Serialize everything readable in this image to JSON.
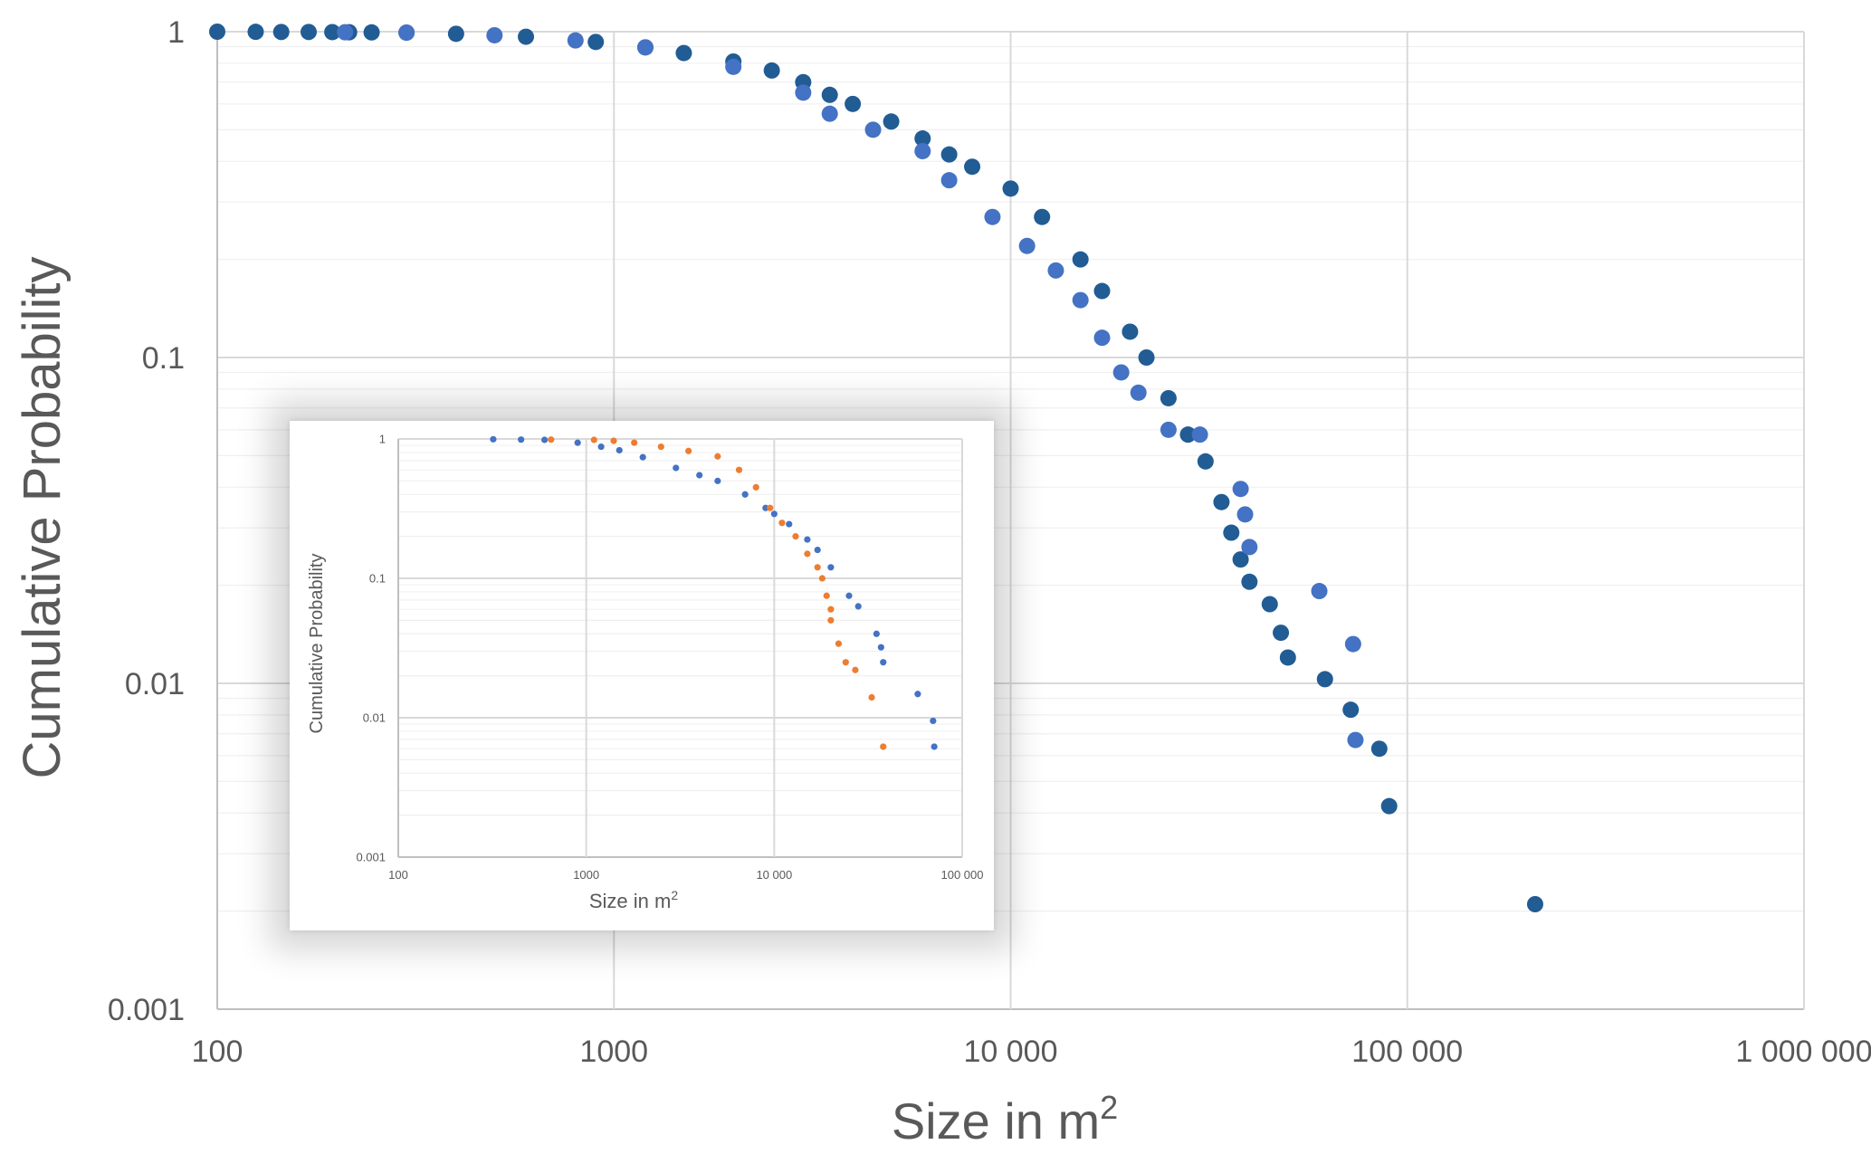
{
  "chart_data": [
    {
      "type": "scatter",
      "xlabel": "Size in m",
      "xlabel_sup": "2",
      "ylabel": "Cumulative Probability",
      "x_scale": "log",
      "y_scale": "log",
      "xlim": [
        100,
        1000000
      ],
      "ylim": [
        0.001,
        1
      ],
      "x_ticks": [
        "100",
        "1000",
        "10 000",
        "100 000",
        "1 000 000"
      ],
      "y_ticks": [
        "1",
        "0.1",
        "0.01",
        "0.001"
      ],
      "grid": true,
      "legend": "none",
      "series": [
        {
          "color": "#215c94",
          "points": [
            [
              100,
              1
            ],
            [
              125,
              0.999
            ],
            [
              145,
              0.998
            ],
            [
              170,
              0.998
            ],
            [
              195,
              0.997
            ],
            [
              215,
              0.996
            ],
            [
              245,
              0.995
            ],
            [
              300,
              0.993
            ],
            [
              400,
              0.985
            ],
            [
              600,
              0.965
            ],
            [
              900,
              0.93
            ],
            [
              1200,
              0.895
            ],
            [
              1500,
              0.86
            ],
            [
              2000,
              0.81
            ],
            [
              2500,
              0.76
            ],
            [
              3000,
              0.7
            ],
            [
              3500,
              0.64
            ],
            [
              4000,
              0.6
            ],
            [
              5000,
              0.53
            ],
            [
              6000,
              0.47
            ],
            [
              7000,
              0.42
            ],
            [
              8000,
              0.385
            ],
            [
              10000,
              0.33
            ],
            [
              12000,
              0.27
            ],
            [
              15000,
              0.2
            ],
            [
              17000,
              0.16
            ],
            [
              20000,
              0.12
            ],
            [
              22000,
              0.1
            ],
            [
              25000,
              0.075
            ],
            [
              28000,
              0.058
            ],
            [
              31000,
              0.048
            ],
            [
              34000,
              0.036
            ],
            [
              36000,
              0.029
            ],
            [
              38000,
              0.024
            ],
            [
              40000,
              0.0205
            ],
            [
              45000,
              0.0175
            ],
            [
              48000,
              0.0143
            ],
            [
              50000,
              0.012
            ],
            [
              62000,
              0.0103
            ],
            [
              72000,
              0.0083
            ],
            [
              85000,
              0.0063
            ],
            [
              90000,
              0.0042
            ],
            [
              210000,
              0.0021
            ]
          ]
        },
        {
          "color": "#4472c4",
          "points": [
            [
              210,
              0.996
            ],
            [
              300,
              0.994
            ],
            [
              500,
              0.975
            ],
            [
              800,
              0.94
            ],
            [
              1200,
              0.895
            ],
            [
              2000,
              0.78
            ],
            [
              3000,
              0.65
            ],
            [
              3500,
              0.56
            ],
            [
              4500,
              0.5
            ],
            [
              6000,
              0.43
            ],
            [
              7000,
              0.35
            ],
            [
              9000,
              0.27
            ],
            [
              11000,
              0.22
            ],
            [
              13000,
              0.185
            ],
            [
              15000,
              0.15
            ],
            [
              17000,
              0.115
            ],
            [
              19000,
              0.09
            ],
            [
              21000,
              0.078
            ],
            [
              25000,
              0.06
            ],
            [
              30000,
              0.058
            ],
            [
              38000,
              0.0395
            ],
            [
              39000,
              0.033
            ],
            [
              40000,
              0.0262
            ],
            [
              60000,
              0.0192
            ],
            [
              73000,
              0.0132
            ],
            [
              74000,
              0.0067
            ]
          ]
        }
      ]
    },
    {
      "type": "scatter",
      "xlabel": "Size in m",
      "xlabel_sup": "2",
      "ylabel": "Cumulative Probability",
      "x_scale": "log",
      "y_scale": "log",
      "xlim": [
        100,
        100000
      ],
      "ylim": [
        0.001,
        1
      ],
      "x_ticks": [
        "100",
        "1000",
        "10 000",
        "100 000"
      ],
      "y_ticks": [
        "1",
        "0.1",
        "0.01",
        "0.001"
      ],
      "grid": true,
      "legend": "none",
      "series": [
        {
          "color": "#4472c4",
          "points": [
            [
              320,
              0.995
            ],
            [
              450,
              0.99
            ],
            [
              600,
              0.985
            ],
            [
              900,
              0.94
            ],
            [
              1200,
              0.88
            ],
            [
              1500,
              0.83
            ],
            [
              2000,
              0.74
            ],
            [
              3000,
              0.62
            ],
            [
              4000,
              0.55
            ],
            [
              5000,
              0.5
            ],
            [
              7000,
              0.4
            ],
            [
              9000,
              0.32
            ],
            [
              10000,
              0.29
            ],
            [
              12000,
              0.245
            ],
            [
              15000,
              0.19
            ],
            [
              17000,
              0.16
            ],
            [
              20000,
              0.12
            ],
            [
              25000,
              0.075
            ],
            [
              28000,
              0.063
            ],
            [
              35000,
              0.04
            ],
            [
              37000,
              0.032
            ],
            [
              38000,
              0.025
            ],
            [
              58000,
              0.0148
            ],
            [
              70000,
              0.0095
            ],
            [
              71000,
              0.0062
            ]
          ]
        },
        {
          "color": "#ed7d31",
          "points": [
            [
              650,
              0.99
            ],
            [
              1100,
              0.985
            ],
            [
              1400,
              0.97
            ],
            [
              1800,
              0.94
            ],
            [
              2500,
              0.88
            ],
            [
              3500,
              0.82
            ],
            [
              5000,
              0.75
            ],
            [
              6500,
              0.6
            ],
            [
              8000,
              0.45
            ],
            [
              9500,
              0.32
            ],
            [
              11000,
              0.25
            ],
            [
              13000,
              0.2
            ],
            [
              15000,
              0.15
            ],
            [
              17000,
              0.12
            ],
            [
              18000,
              0.1
            ],
            [
              19000,
              0.075
            ],
            [
              20000,
              0.06
            ],
            [
              20000,
              0.05
            ],
            [
              22000,
              0.034
            ],
            [
              24000,
              0.025
            ],
            [
              27000,
              0.022
            ],
            [
              33000,
              0.014
            ],
            [
              38000,
              0.0062
            ]
          ]
        }
      ]
    }
  ]
}
